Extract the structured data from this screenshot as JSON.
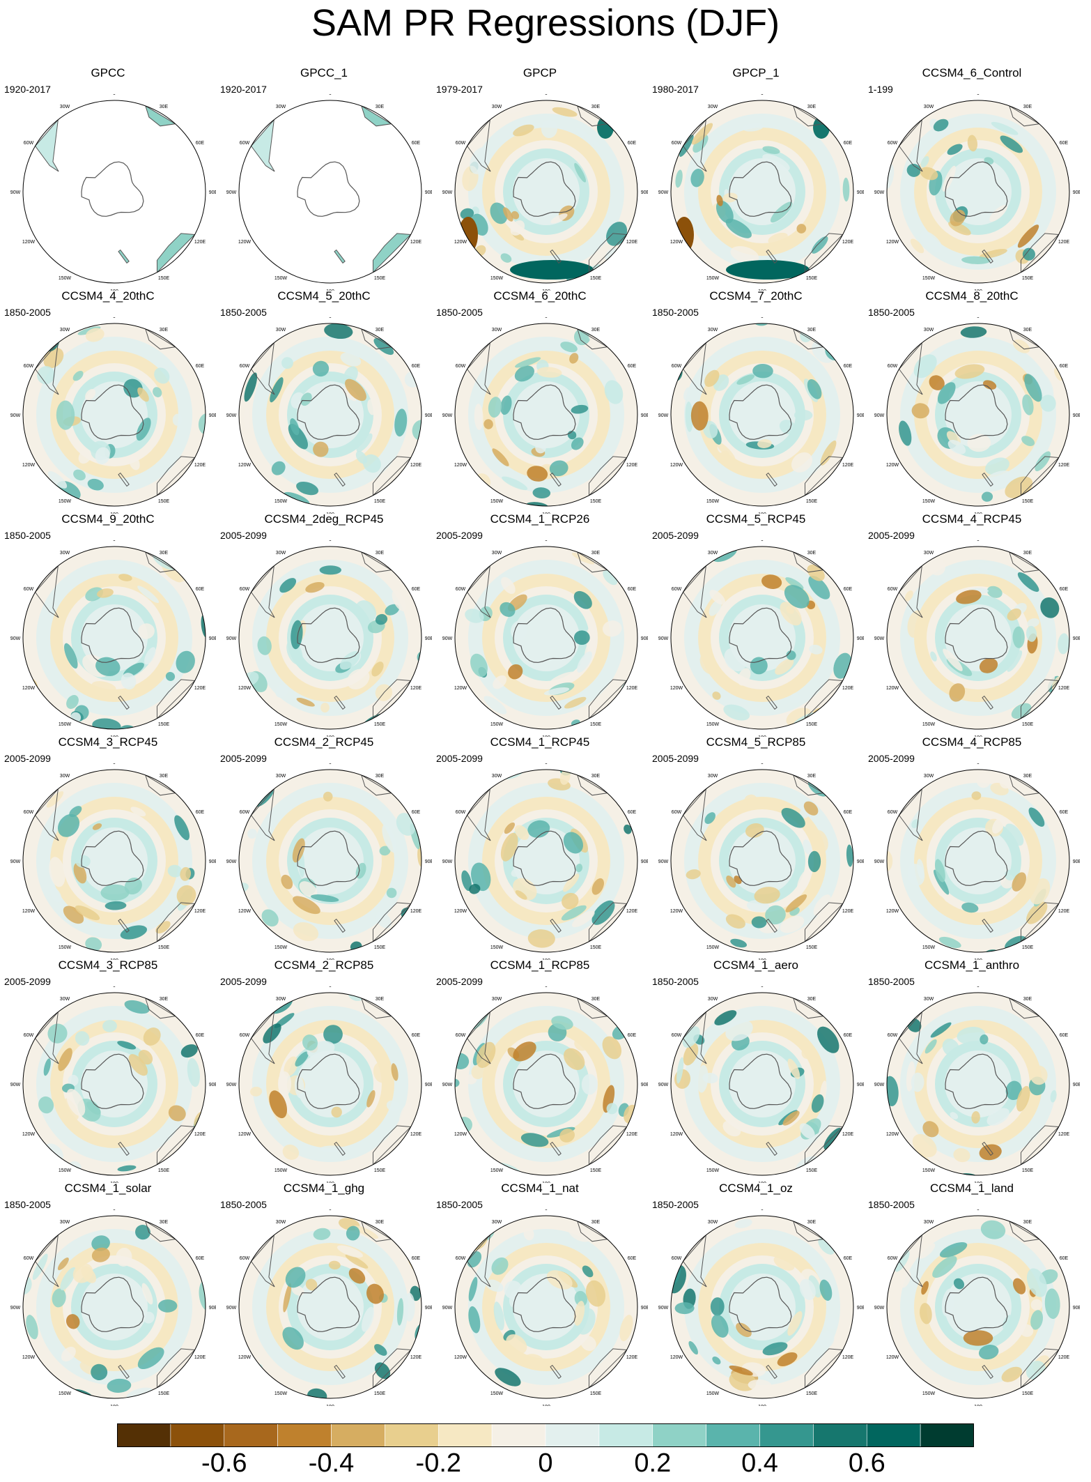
{
  "title": "SAM PR Regressions (DJF)",
  "chart_data": {
    "type": "heatmap",
    "projection": "south-polar-stereographic",
    "variable": "PR",
    "season": "DJF",
    "longitude_labels": [
      "0",
      "30E",
      "60E",
      "90E",
      "120E",
      "150E",
      "180",
      "150W",
      "120W",
      "90W",
      "60W",
      "30W"
    ],
    "colorbar": {
      "levels": [
        -0.7,
        -0.6,
        -0.5,
        -0.4,
        -0.3,
        -0.2,
        -0.1,
        0,
        0.1,
        0.2,
        0.3,
        0.4,
        0.5,
        0.6,
        0.7
      ],
      "tick_labels": [
        "-0.6",
        "-0.4",
        "-0.2",
        "0",
        "0.2",
        "0.4",
        "0.6"
      ],
      "colors": [
        "#543005",
        "#8c510a",
        "#a8681d",
        "#bf812d",
        "#d6ad61",
        "#e8cf8e",
        "#f6e8c3",
        "#f5f0e6",
        "#e3f0ee",
        "#c7eae5",
        "#8fd2c6",
        "#5ab4ac",
        "#35978f",
        "#16776e",
        "#01665e",
        "#003c30"
      ]
    },
    "panels": [
      {
        "name": "GPCC",
        "period": "1920-2017",
        "coverage": "land"
      },
      {
        "name": "GPCC_1",
        "period": "1920-2017",
        "coverage": "land"
      },
      {
        "name": "GPCP",
        "period": "1979-2017",
        "coverage": "global"
      },
      {
        "name": "GPCP_1",
        "period": "1980-2017",
        "coverage": "global"
      },
      {
        "name": "CCSM4_6_Control",
        "period": "1-199",
        "coverage": "global"
      },
      {
        "name": "CCSM4_4_20thC",
        "period": "1850-2005",
        "coverage": "global"
      },
      {
        "name": "CCSM4_5_20thC",
        "period": "1850-2005",
        "coverage": "global"
      },
      {
        "name": "CCSM4_6_20thC",
        "period": "1850-2005",
        "coverage": "global"
      },
      {
        "name": "CCSM4_7_20thC",
        "period": "1850-2005",
        "coverage": "global"
      },
      {
        "name": "CCSM4_8_20thC",
        "period": "1850-2005",
        "coverage": "global"
      },
      {
        "name": "CCSM4_9_20thC",
        "period": "1850-2005",
        "coverage": "global"
      },
      {
        "name": "CCSM4_2deg_RCP45",
        "period": "2005-2099",
        "coverage": "global"
      },
      {
        "name": "CCSM4_1_RCP26",
        "period": "2005-2099",
        "coverage": "global"
      },
      {
        "name": "CCSM4_5_RCP45",
        "period": "2005-2099",
        "coverage": "global"
      },
      {
        "name": "CCSM4_4_RCP45",
        "period": "2005-2099",
        "coverage": "global"
      },
      {
        "name": "CCSM4_3_RCP45",
        "period": "2005-2099",
        "coverage": "global"
      },
      {
        "name": "CCSM4_2_RCP45",
        "period": "2005-2099",
        "coverage": "global"
      },
      {
        "name": "CCSM4_1_RCP45",
        "period": "2005-2099",
        "coverage": "global"
      },
      {
        "name": "CCSM4_5_RCP85",
        "period": "2005-2099",
        "coverage": "global"
      },
      {
        "name": "CCSM4_4_RCP85",
        "period": "2005-2099",
        "coverage": "global"
      },
      {
        "name": "CCSM4_3_RCP85",
        "period": "2005-2099",
        "coverage": "global"
      },
      {
        "name": "CCSM4_2_RCP85",
        "period": "2005-2099",
        "coverage": "global"
      },
      {
        "name": "CCSM4_1_RCP85",
        "period": "2005-2099",
        "coverage": "global"
      },
      {
        "name": "CCSM4_1_aero",
        "period": "1850-2005",
        "coverage": "global"
      },
      {
        "name": "CCSM4_1_anthro",
        "period": "1850-2005",
        "coverage": "global"
      },
      {
        "name": "CCSM4_1_solar",
        "period": "1850-2005",
        "coverage": "global"
      },
      {
        "name": "CCSM4_1_ghg",
        "period": "1850-2005",
        "coverage": "global"
      },
      {
        "name": "CCSM4_1_nat",
        "period": "1850-2005",
        "coverage": "global"
      },
      {
        "name": "CCSM4_1_oz",
        "period": "1850-2005",
        "coverage": "global"
      },
      {
        "name": "CCSM4_1_land",
        "period": "1850-2005",
        "coverage": "global"
      }
    ]
  }
}
